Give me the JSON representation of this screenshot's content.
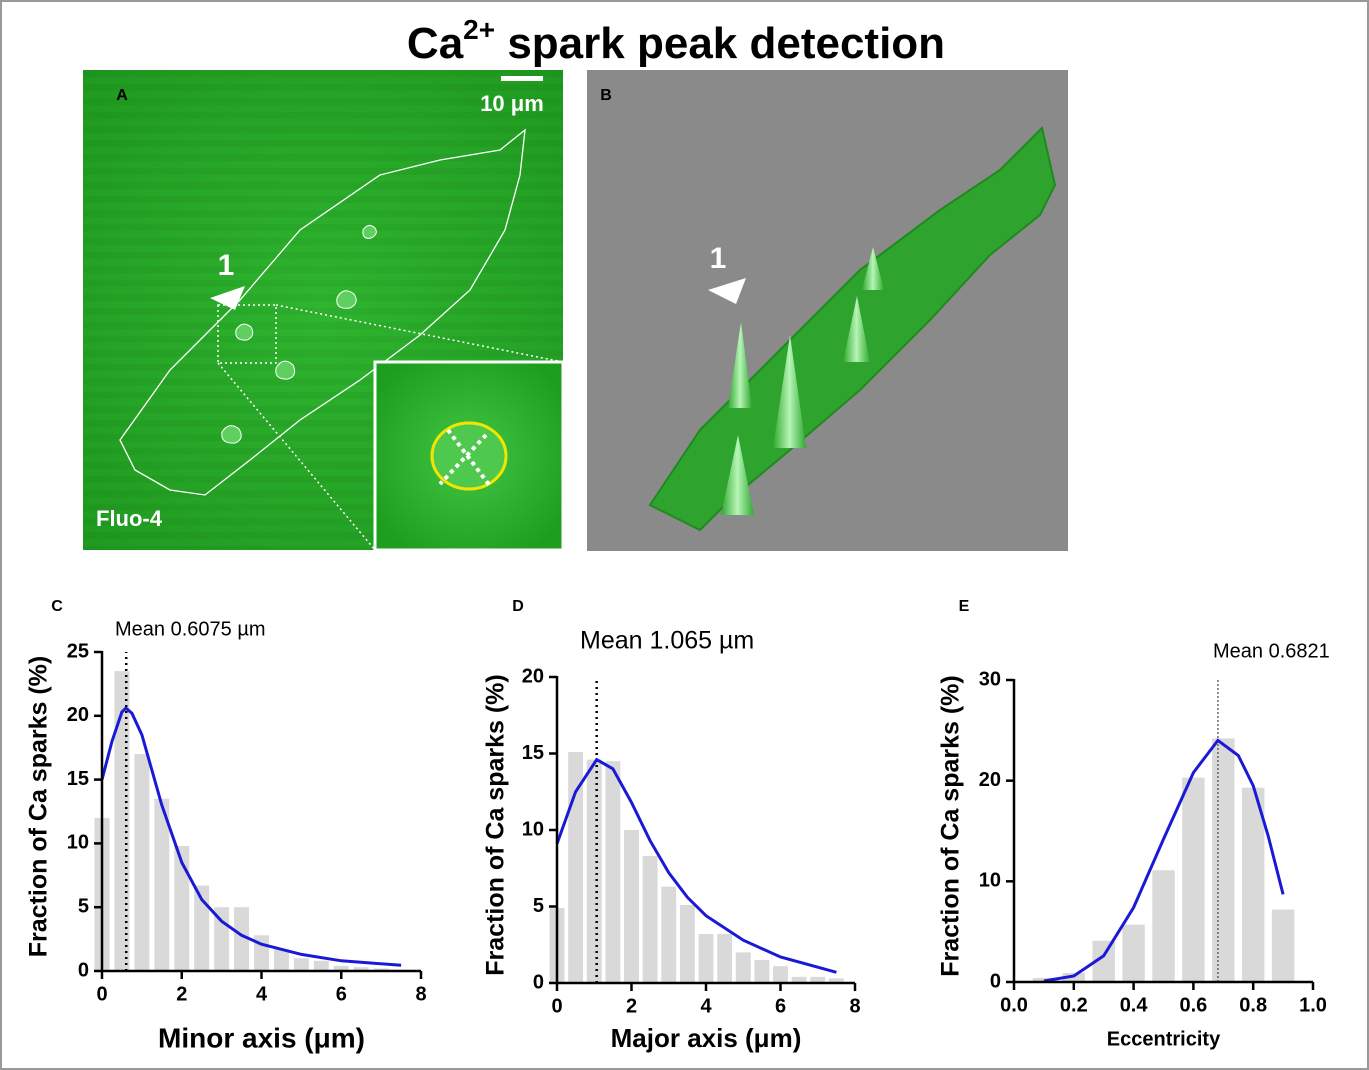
{
  "title": {
    "text": "Ca",
    "sup": "2+",
    "rest": " spark peak detection"
  },
  "panels": {
    "A": {
      "label": "A",
      "scale_bar": "10 μm",
      "marker": "1",
      "dye": "Fluo-4"
    },
    "B": {
      "label": "B",
      "marker": "1"
    }
  },
  "chart_data": [
    {
      "type": "bar",
      "panel": "C",
      "y_label": "Fraction of Ca sparks (%)",
      "x_label": "Minor axis (μm)",
      "x": [
        0,
        0.5,
        1,
        1.5,
        2,
        2.5,
        3,
        3.5,
        4,
        4.5,
        5,
        5.5,
        6,
        6.5,
        7,
        7.5
      ],
      "values": [
        12,
        23.5,
        17,
        13.5,
        9.8,
        6.7,
        5,
        5,
        2.8,
        1.7,
        1,
        0.8,
        0.4,
        0.3,
        0.2,
        0.1
      ],
      "color": "#d9d9d9",
      "fit": {
        "color": "#1a1ad6",
        "x": [
          0,
          0.25,
          0.5,
          0.6,
          0.75,
          1,
          1.5,
          2,
          2.5,
          3,
          3.5,
          4,
          5,
          6,
          7.5
        ],
        "values": [
          15,
          18,
          20.3,
          20.6,
          20.2,
          18.5,
          13,
          8.5,
          5.6,
          3.9,
          2.8,
          2.1,
          1.3,
          0.8,
          0.45
        ]
      },
      "mean": {
        "value": 0.6075,
        "label": "Mean 0.6075 µm"
      },
      "xlim": [
        0,
        8
      ],
      "xticks": [
        0,
        2,
        4,
        6,
        8
      ],
      "ylim": [
        0,
        25
      ],
      "yticks": [
        0,
        5,
        10,
        15,
        20,
        25
      ]
    },
    {
      "type": "bar",
      "panel": "D",
      "y_label": "Fraction of Ca sparks (%)",
      "x_label": "Major axis (μm)",
      "x": [
        0,
        0.5,
        1,
        1.5,
        2,
        2.5,
        3,
        3.5,
        4,
        4.5,
        5,
        5.5,
        6,
        6.5,
        7,
        7.5
      ],
      "values": [
        4.9,
        15.1,
        14.6,
        14.5,
        10,
        8.3,
        6.3,
        5.1,
        3.2,
        3.2,
        2,
        1.5,
        1.1,
        0.4,
        0.4,
        0.3
      ],
      "color": "#d9d9d9",
      "fit": {
        "color": "#1a1ad6",
        "x": [
          0,
          0.5,
          1.065,
          1.5,
          2,
          2.5,
          3,
          3.5,
          4,
          5,
          6,
          7.5
        ],
        "values": [
          9.1,
          12.5,
          14.6,
          14,
          11.8,
          9.3,
          7.2,
          5.6,
          4.4,
          2.8,
          1.7,
          0.7
        ]
      },
      "mean": {
        "value": 1.065,
        "label": "Mean 1.065 µm"
      },
      "xlim": [
        0,
        8
      ],
      "xticks": [
        0,
        2,
        4,
        6,
        8
      ],
      "ylim": [
        0,
        20
      ],
      "yticks": [
        0,
        5,
        10,
        15,
        20
      ]
    },
    {
      "type": "bar",
      "panel": "E",
      "y_label": "Fraction of Ca sparks (%)",
      "x_label": "Eccentricity",
      "x": [
        0.1,
        0.2,
        0.3,
        0.4,
        0.5,
        0.6,
        0.7,
        0.8,
        0.9
      ],
      "values": [
        0.4,
        0.9,
        4.1,
        5.7,
        11.1,
        20.3,
        24.2,
        19.3,
        7.2
      ],
      "color": "#d9d9d9",
      "fit": {
        "color": "#1a1ad6",
        "x": [
          0.1,
          0.2,
          0.3,
          0.4,
          0.5,
          0.6,
          0.682,
          0.75,
          0.8,
          0.85,
          0.9
        ],
        "values": [
          0.1,
          0.6,
          2.6,
          7.4,
          14.2,
          20.8,
          24,
          22.5,
          19.5,
          14.5,
          8.7
        ]
      },
      "mean": {
        "value": 0.6821,
        "label": "Mean 0.6821"
      },
      "xlim": [
        0,
        1
      ],
      "xticks": [
        {
          "value": 0,
          "label": "0.0"
        },
        0.2,
        0.4,
        0.6,
        0.8,
        {
          "value": 1,
          "label": "1.0"
        }
      ],
      "ylim": [
        0,
        30
      ],
      "yticks": [
        0,
        10,
        20,
        30
      ]
    }
  ]
}
